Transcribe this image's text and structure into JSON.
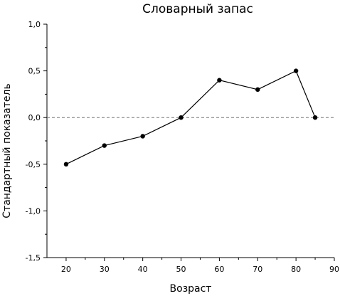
{
  "chart_data": {
    "type": "line",
    "title": "Словарный запас",
    "xlabel": "Возраст",
    "ylabel": "Стандартный показатель",
    "x": [
      20,
      30,
      40,
      50,
      60,
      70,
      80,
      85
    ],
    "series": [
      {
        "values": [
          -0.5,
          -0.3,
          -0.2,
          0.0,
          0.4,
          0.3,
          0.5,
          0.0
        ]
      }
    ],
    "xlim": [
      15,
      90
    ],
    "ylim": [
      -1.5,
      1.0
    ],
    "x_ticks": [
      20,
      30,
      40,
      50,
      60,
      70,
      80,
      90
    ],
    "x_tick_labels": [
      "20",
      "30",
      "40",
      "50",
      "60",
      "70",
      "80",
      "90"
    ],
    "y_ticks": [
      1.0,
      0.5,
      0.0,
      -0.5,
      -1.0,
      -1.5
    ],
    "y_tick_labels": [
      "1,0",
      "0,5",
      "0,0",
      "-0,5",
      "-1,0",
      "-1,5"
    ],
    "reference_line_y": 0.0,
    "grid": false,
    "line_color": "#000000",
    "reference_line_color": "#777777"
  }
}
